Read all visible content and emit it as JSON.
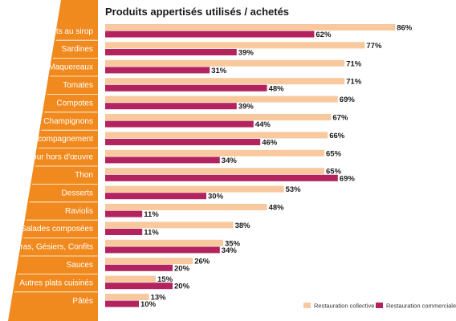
{
  "colors": {
    "sidebar": "#f18a1e",
    "collective": "#f8c99e",
    "commerciale": "#b3245f",
    "rule": "#ffffff"
  },
  "chart_data": {
    "type": "bar",
    "orientation": "horizontal",
    "title": "Produits appertisés utilisés / achetés",
    "categories": [
      "Fruits au sirop",
      "Sardines",
      "Maquereaux",
      "Tomates",
      "Compotes",
      "Champignons",
      "Légumes d'accompagnement",
      "Légumes pour hors d'œuvre",
      "Thon",
      "Desserts",
      "Raviolis",
      "Salades composées",
      "Fois gras, Gésiers, Confits",
      "Sauces",
      "Autres plats cuisinés",
      "Pâtés"
    ],
    "series": [
      {
        "name": "Restauration collective",
        "values": [
          86,
          77,
          71,
          71,
          69,
          67,
          66,
          65,
          65,
          53,
          48,
          38,
          35,
          26,
          15,
          13
        ]
      },
      {
        "name": "Restauration commerciale",
        "values": [
          62,
          39,
          31,
          48,
          39,
          44,
          46,
          34,
          69,
          30,
          11,
          11,
          34,
          20,
          20,
          10
        ]
      }
    ],
    "value_suffix": "%",
    "xlim": [
      0,
      100
    ],
    "grid": false,
    "legend_position": "bottom-right"
  }
}
